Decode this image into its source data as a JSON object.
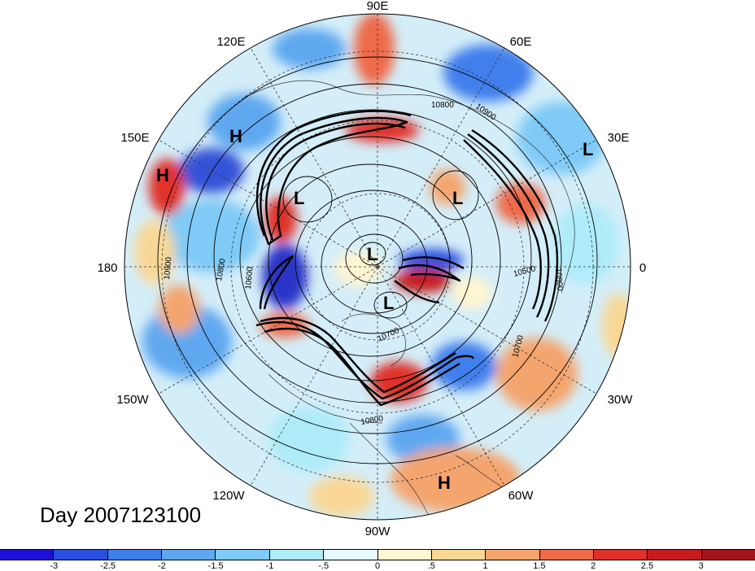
{
  "title": "Day 2007123100",
  "longitude_labels": {
    "lon_90E": "90E",
    "lon_120E": "120E",
    "lon_60E": "60E",
    "lon_150E": "150E",
    "lon_30E": "30E",
    "lon_180": "180",
    "lon_0": "0",
    "lon_150W": "150W",
    "lon_30W": "30W",
    "lon_120W": "120W",
    "lon_60W": "60W",
    "lon_90W": "90W"
  },
  "pressure_centers": [
    {
      "label": "H",
      "name": "high-150E-a"
    },
    {
      "label": "H",
      "name": "high-150E-b"
    },
    {
      "label": "L",
      "name": "low-30E"
    },
    {
      "label": "L",
      "name": "low-siberia"
    },
    {
      "label": "L",
      "name": "low-scandinavia"
    },
    {
      "label": "L",
      "name": "low-pole"
    },
    {
      "label": "L",
      "name": "low-canada"
    },
    {
      "label": "H",
      "name": "high-south-america"
    }
  ],
  "contour_labels": {
    "c1": "10800",
    "c2": "10900",
    "c3": "10600",
    "c4": "10900",
    "c5": "10800",
    "c6": "10500",
    "c7": "10800",
    "c8": "10700",
    "c9": "10800",
    "c10": "10700"
  },
  "colorbar": {
    "labels": [
      "-3",
      "-2.5",
      "-2",
      "-1.5",
      "-1",
      "-.5",
      "0",
      ".5",
      "1",
      "1.5",
      "2",
      "2.5",
      "3"
    ],
    "colors": [
      "#1f10d8",
      "#2a4fe0",
      "#3f7fec",
      "#5fa8f0",
      "#7fcaf6",
      "#aeecf9",
      "#e6fafc",
      "#fef5d2",
      "#f9d896",
      "#f4a56e",
      "#ee6a48",
      "#e0302a",
      "#c81a1e",
      "#a6121c"
    ]
  },
  "colors": {
    "ocean_base": "#d6eefa",
    "jet_line": "#000000"
  }
}
